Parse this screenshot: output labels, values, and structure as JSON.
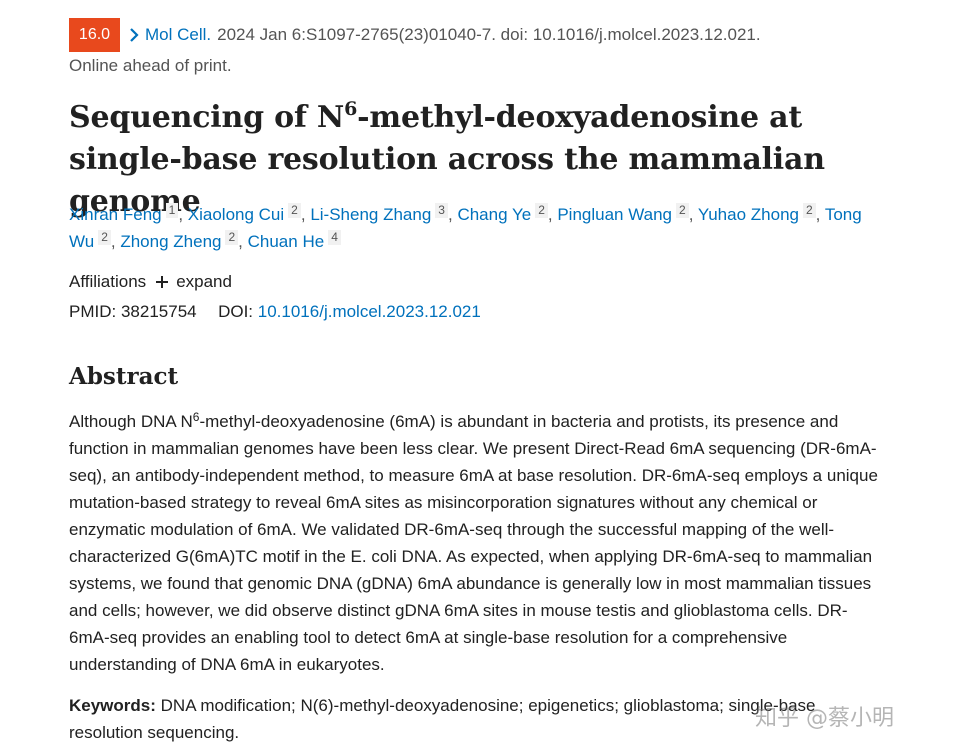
{
  "citation": {
    "badge": "16.0",
    "journal": "Mol Cell.",
    "details": "2024 Jan 6:S1097-2765(23)01040-7. doi: 10.1016/j.molcel.2023.12.021.",
    "status": "Online ahead of print."
  },
  "title": {
    "before_sup": "Sequencing of N",
    "sup": "6",
    "after_sup": "-methyl-deoxyadenosine at single-base resolution across the mammalian genome"
  },
  "authors": [
    {
      "name": "Xinran Feng",
      "aff": "1"
    },
    {
      "name": "Xiaolong Cui",
      "aff": "2"
    },
    {
      "name": "Li-Sheng Zhang",
      "aff": "3"
    },
    {
      "name": "Chang Ye",
      "aff": "2"
    },
    {
      "name": "Pingluan Wang",
      "aff": "2"
    },
    {
      "name": "Yuhao Zhong",
      "aff": "2"
    },
    {
      "name": "Tong Wu",
      "aff": "2"
    },
    {
      "name": "Zhong Zheng",
      "aff": "2"
    },
    {
      "name": "Chuan He",
      "aff": "4"
    }
  ],
  "affiliations": {
    "label": "Affiliations",
    "toggle": "expand"
  },
  "ids": {
    "pmid_label": "PMID:",
    "pmid": "38215754",
    "doi_label": "DOI:",
    "doi": "10.1016/j.molcel.2023.12.021"
  },
  "abstract": {
    "heading": "Abstract",
    "text_before_sup": "Although DNA N",
    "sup": "6",
    "text_after_sup": "-methyl-deoxyadenosine (6mA) is abundant in bacteria and protists, its presence and function in mammalian genomes have been less clear. We present Direct-Read 6mA sequencing (DR-6mA-seq), an antibody-independent method, to measure 6mA at base resolution. DR-6mA-seq employs a unique mutation-based strategy to reveal 6mA sites as misincorporation signatures without any chemical or enzymatic modulation of 6mA. We validated DR-6mA-seq through the successful mapping of the well-characterized G(6mA)TC motif in the E. coli DNA. As expected, when applying DR-6mA-seq to mammalian systems, we found that genomic DNA (gDNA) 6mA abundance is generally low in most mammalian tissues and cells; however, we did observe distinct gDNA 6mA sites in mouse testis and glioblastoma cells. DR-6mA-seq provides an enabling tool to detect 6mA at single-base resolution for a comprehensive understanding of DNA 6mA in eukaryotes."
  },
  "keywords": {
    "label": "Keywords:",
    "text": "DNA modification; N(6)-methyl-deoxyadenosine; epigenetics; glioblastoma; single-base resolution sequencing."
  },
  "watermark": "知乎 @蔡小明"
}
